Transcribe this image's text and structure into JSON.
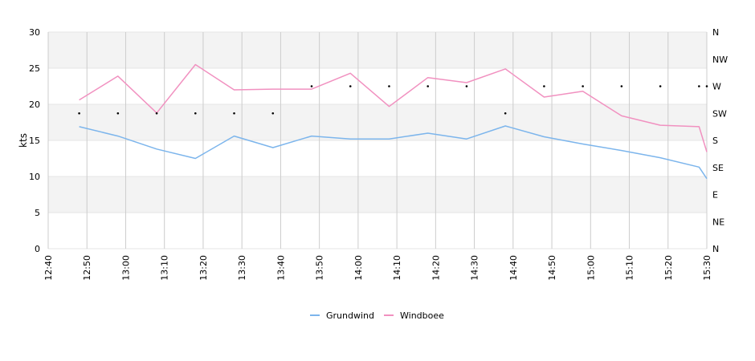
{
  "chart_data": {
    "type": "line",
    "ylabel": "kts",
    "ylim": [
      0,
      30
    ],
    "y_ticks": [
      "0",
      "5",
      "10",
      "15",
      "20",
      "25",
      "30"
    ],
    "x_tick_labels": [
      "12:40",
      "12:50",
      "13:00",
      "13:10",
      "13:20",
      "13:30",
      "13:40",
      "13:50",
      "14:00",
      "14:10",
      "14:20",
      "14:30",
      "14:40",
      "14:50",
      "15:00",
      "15:10",
      "15:20",
      "15:30"
    ],
    "y2_ticks": [
      "N",
      "NE",
      "E",
      "SE",
      "S",
      "SW",
      "W",
      "NW",
      "N"
    ],
    "band_colors": [
      "#ffffff",
      "#f3f3f3"
    ],
    "series": [
      {
        "name": "Grundwind",
        "color": "#7cb5ec",
        "x": [
          "12:48",
          "12:58",
          "13:08",
          "13:18",
          "13:28",
          "13:38",
          "13:48",
          "13:58",
          "14:08",
          "14:18",
          "14:28",
          "14:38",
          "14:48",
          "14:58",
          "15:08",
          "15:18",
          "15:28",
          "15:30"
        ],
        "values": [
          16.9,
          15.6,
          13.8,
          12.5,
          15.6,
          14.0,
          15.6,
          15.2,
          15.2,
          16.0,
          15.2,
          17.0,
          15.5,
          14.5,
          13.6,
          12.6,
          11.3,
          9.7
        ]
      },
      {
        "name": "Windboee",
        "color": "#f191c0",
        "x": [
          "12:48",
          "12:58",
          "13:08",
          "13:18",
          "13:28",
          "13:38",
          "13:48",
          "13:58",
          "14:08",
          "14:18",
          "14:28",
          "14:38",
          "14:48",
          "14:58",
          "15:08",
          "15:18",
          "15:28",
          "15:30"
        ],
        "values": [
          20.6,
          23.9,
          18.8,
          25.5,
          22.0,
          22.1,
          22.1,
          24.3,
          19.7,
          23.7,
          23.0,
          24.9,
          21.0,
          21.8,
          18.4,
          17.1,
          16.9,
          13.4
        ]
      }
    ],
    "direction_dots": {
      "x": [
        "12:48",
        "12:58",
        "13:08",
        "13:18",
        "13:28",
        "13:38",
        "13:48",
        "13:58",
        "14:08",
        "14:18",
        "14:28",
        "14:38",
        "14:48",
        "14:58",
        "15:08",
        "15:18",
        "15:28",
        "15:30"
      ],
      "values": [
        "SW",
        "SW",
        "SW",
        "SW",
        "SW",
        "SW",
        "W",
        "W",
        "W",
        "W",
        "W",
        "SW",
        "W",
        "W",
        "W",
        "W",
        "W",
        "W"
      ]
    },
    "legend": {
      "placement": "bottom-center",
      "entries": [
        "Grundwind",
        "Windboee"
      ]
    }
  }
}
